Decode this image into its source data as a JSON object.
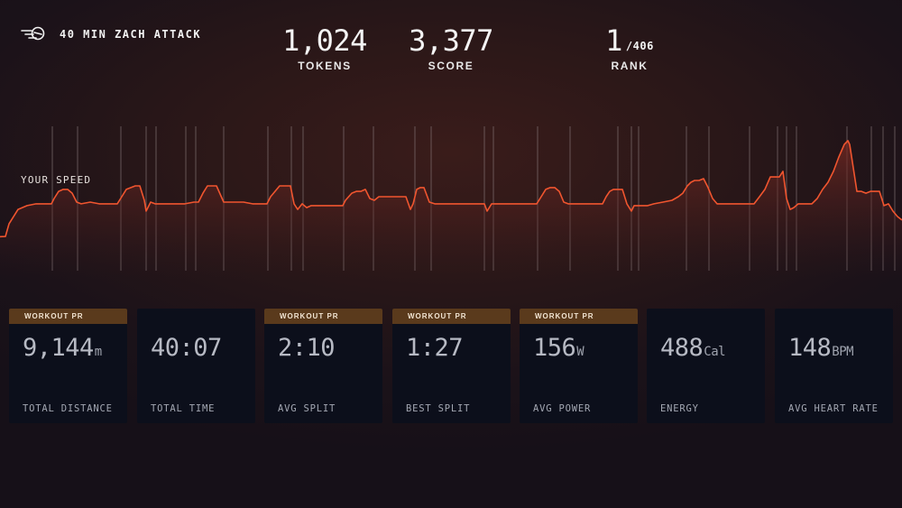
{
  "header": {
    "workout_title": "40 MIN ZACH ATTACK",
    "logo_icon": "rower-logo-icon"
  },
  "stats": {
    "tokens": {
      "value": "1,024",
      "label": "TOKENS"
    },
    "score": {
      "value": "3,377",
      "label": "SCORE"
    },
    "rank": {
      "value": "1",
      "total": "/406",
      "label": "RANK"
    }
  },
  "speed_chart": {
    "label": "YOUR SPEED",
    "line_color": "#f0552f",
    "fill_color": "#6a2a24",
    "marker_color": "#8d7f80"
  },
  "chart_data": {
    "type": "area",
    "title": "",
    "xlabel": "",
    "ylabel": "YOUR SPEED",
    "x": [
      0,
      6,
      10,
      20,
      30,
      40,
      50,
      57,
      60,
      65,
      70,
      75,
      80,
      85,
      90,
      100,
      110,
      120,
      130,
      135,
      140,
      150,
      155,
      160,
      162,
      167,
      172,
      178,
      185,
      195,
      205,
      215,
      220,
      225,
      230,
      235,
      240,
      248,
      255,
      262,
      270,
      280,
      290,
      296,
      300,
      310,
      318,
      322,
      326,
      330,
      335,
      340,
      345,
      350,
      360,
      370,
      380,
      383,
      390,
      395,
      400,
      405,
      410,
      415,
      420,
      425,
      430,
      440,
      450,
      455,
      458,
      462,
      466,
      470,
      476,
      482,
      488,
      492,
      496,
      500,
      510,
      520,
      530,
      537,
      540,
      545,
      550,
      555,
      560,
      570,
      580,
      590,
      595,
      600,
      605,
      610,
      615,
      620,
      625,
      630,
      640,
      650,
      660,
      668,
      672,
      676,
      680,
      685,
      690,
      695,
      700,
      703,
      707,
      712,
      718,
      725,
      735,
      745,
      752,
      757,
      762,
      766,
      770,
      775,
      780,
      785,
      790,
      795,
      800,
      810,
      820,
      830,
      836,
      842,
      848,
      854,
      860,
      864,
      868,
      872,
      876,
      880,
      885,
      890,
      895,
      900,
      906,
      912,
      918,
      924,
      930,
      936,
      940,
      942,
      946,
      950,
      955,
      960,
      965,
      970,
      975,
      980,
      985,
      990,
      995,
      1000
    ],
    "y": [
      2.65,
      2.66,
      3.44,
      4.33,
      4.56,
      4.67,
      4.67,
      4.67,
      5,
      5.44,
      5.56,
      5.56,
      5.33,
      4.78,
      4.67,
      4.78,
      4.67,
      4.67,
      4.67,
      5.11,
      5.56,
      5.78,
      5.78,
      4.89,
      4.22,
      4.78,
      4.67,
      4.67,
      4.67,
      4.67,
      4.67,
      4.78,
      4.78,
      5.33,
      5.78,
      5.78,
      5.78,
      4.78,
      4.78,
      4.78,
      4.78,
      4.67,
      4.67,
      4.67,
      5.11,
      5.78,
      5.78,
      5.78,
      4.67,
      4.33,
      4.67,
      4.44,
      4.56,
      4.56,
      4.56,
      4.56,
      4.56,
      4.89,
      5.33,
      5.44,
      5.44,
      5.56,
      5,
      4.89,
      5.11,
      5.11,
      5.11,
      5.11,
      5.11,
      4.33,
      4.67,
      5.56,
      5.67,
      5.67,
      4.78,
      4.67,
      4.67,
      4.67,
      4.67,
      4.67,
      4.67,
      4.67,
      4.67,
      4.67,
      4.22,
      4.67,
      4.67,
      4.67,
      4.67,
      4.67,
      4.67,
      4.67,
      4.67,
      5.11,
      5.56,
      5.67,
      5.67,
      5.44,
      4.78,
      4.67,
      4.67,
      4.67,
      4.67,
      4.67,
      5.11,
      5.44,
      5.56,
      5.56,
      5.56,
      4.67,
      4.22,
      4.56,
      4.56,
      4.56,
      4.56,
      4.67,
      4.78,
      4.89,
      5.11,
      5.33,
      5.78,
      6,
      6.11,
      6.11,
      6.22,
      5.67,
      5,
      4.67,
      4.67,
      4.67,
      4.67,
      4.67,
      4.67,
      5.11,
      5.56,
      6.33,
      6.33,
      6.33,
      6.67,
      5,
      4.33,
      4.44,
      4.67,
      4.67,
      4.67,
      4.67,
      5,
      5.56,
      6,
      6.67,
      7.56,
      8.33,
      8.56,
      8.33,
      6.89,
      5.44,
      5.44,
      5.33,
      5.44,
      5.44,
      5.44,
      4.56,
      4.67,
      4.22,
      3.89,
      3.67
    ],
    "markers_x": [
      58,
      86,
      134,
      162,
      173,
      206,
      217,
      248,
      297,
      323,
      336,
      381,
      414,
      460,
      478,
      537,
      547,
      596,
      632,
      685,
      700,
      708,
      761,
      786,
      831,
      862,
      872,
      883,
      939,
      966,
      979,
      992
    ],
    "xlim": [
      0,
      1000
    ],
    "ylim": [
      0,
      10
    ],
    "grid": false,
    "legend": "none"
  },
  "cards": [
    {
      "badge": "WORKOUT PR",
      "value": "9,144",
      "unit": "m",
      "label": "TOTAL DISTANCE"
    },
    {
      "badge": "",
      "value": "40:07",
      "unit": "",
      "label": "TOTAL TIME"
    },
    {
      "badge": "WORKOUT PR",
      "value": "2:10",
      "unit": "",
      "label": "AVG SPLIT"
    },
    {
      "badge": "WORKOUT PR",
      "value": "1:27",
      "unit": "",
      "label": "BEST SPLIT"
    },
    {
      "badge": "WORKOUT PR",
      "value": "156",
      "unit": "W",
      "label": "AVG POWER"
    },
    {
      "badge": "",
      "value": "488",
      "unit": "Cal",
      "label": "ENERGY"
    },
    {
      "badge": "",
      "value": "148",
      "unit": "BPM",
      "label": "AVG HEART RATE"
    }
  ]
}
